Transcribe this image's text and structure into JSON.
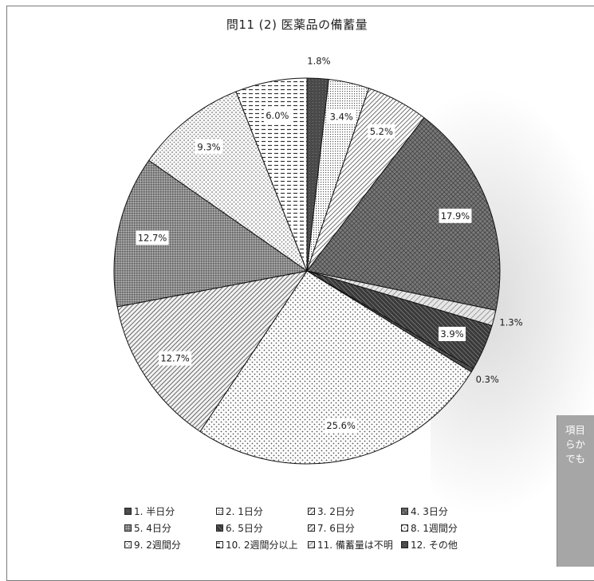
{
  "title": "問11 (2) 医薬品の備蓄量",
  "chart_data": {
    "type": "pie",
    "title": "問11 (2) 医薬品の備蓄量",
    "unit": "%",
    "start": "12 o'clock",
    "direction": "clockwise",
    "legend_position": "bottom",
    "slices": [
      {
        "label": "1. 半日分",
        "value": 1.8,
        "pattern": "dark"
      },
      {
        "label": "2. 1日分",
        "value": 3.4,
        "pattern": "stipple"
      },
      {
        "label": "3. 2日分",
        "value": 5.2,
        "pattern": "hatch-fine"
      },
      {
        "label": "4. 3日分",
        "value": 17.9,
        "pattern": "crosshatch"
      },
      {
        "label": "11. 備蓄量は不明",
        "value": 1.3,
        "pattern": "light-hatch"
      },
      {
        "label": "6. 5日分",
        "value": 3.9,
        "pattern": "dark-hatch"
      },
      {
        "label": "12. その他",
        "value": 0.3,
        "pattern": "dark"
      },
      {
        "label": "8. 1週間分",
        "value": 25.6,
        "pattern": "dots-small"
      },
      {
        "label": "7. 6日分",
        "value": 12.7,
        "pattern": "diag"
      },
      {
        "label": "5. 4日分",
        "value": 12.7,
        "pattern": "grid"
      },
      {
        "label": "9. 2週間分",
        "value": 9.3,
        "pattern": "dots-sparse"
      },
      {
        "label": "10. 2週間分以上",
        "value": 6.0,
        "pattern": "dash"
      }
    ]
  },
  "legend": [
    {
      "label": "1. 半日分",
      "pattern": "dark"
    },
    {
      "label": "2. 1日分",
      "pattern": "stipple"
    },
    {
      "label": "3. 2日分",
      "pattern": "hatch-fine"
    },
    {
      "label": "4. 3日分",
      "pattern": "crosshatch"
    },
    {
      "label": "5. 4日分",
      "pattern": "grid"
    },
    {
      "label": "6. 5日分",
      "pattern": "dark-hatch"
    },
    {
      "label": "7. 6日分",
      "pattern": "diag"
    },
    {
      "label": "8. 1週間分",
      "pattern": "dots-small"
    },
    {
      "label": "9. 2週間分",
      "pattern": "dots-sparse"
    },
    {
      "label": "10. 2週間分以上",
      "pattern": "dash"
    },
    {
      "label": "11. 備蓄量は不明",
      "pattern": "light-hatch"
    },
    {
      "label": "12. その他",
      "pattern": "dark"
    }
  ],
  "side_panel": {
    "lines": [
      "項目",
      "らか",
      "でも"
    ],
    "color": "#a6a6a6"
  }
}
